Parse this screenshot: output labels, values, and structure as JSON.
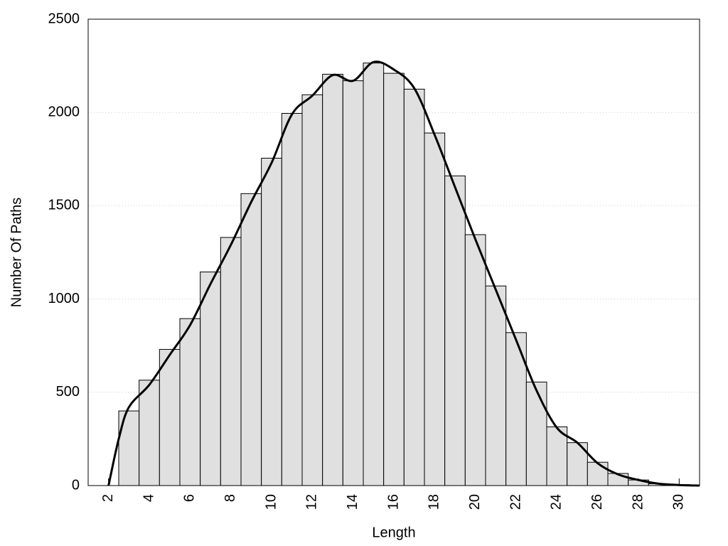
{
  "chart_data": {
    "type": "histogram",
    "x_label": "Length",
    "y_label": "Number Of Paths",
    "bins": [
      2.5,
      3.5,
      4.5,
      5.5,
      6.5,
      7.5,
      8.5,
      9.5,
      10.5,
      11.5,
      12.5,
      13.5,
      14.5,
      15.5,
      16.5,
      17.5,
      18.5,
      19.5,
      20.5,
      21.5,
      22.5,
      23.5,
      24.5,
      25.5,
      26.5,
      27.5,
      28.5,
      29.5,
      30.5
    ],
    "values": [
      400,
      565,
      730,
      895,
      1145,
      1330,
      1565,
      1755,
      1995,
      2095,
      2205,
      2170,
      2265,
      2210,
      2125,
      1890,
      1660,
      1345,
      1070,
      820,
      555,
      315,
      230,
      125,
      65,
      30,
      10,
      5
    ],
    "color": "#e0e0e0",
    "density": {
      "color": "#000000",
      "x": [
        2,
        2.5,
        3,
        4,
        5,
        6,
        7,
        8,
        9,
        10,
        11,
        12,
        13,
        14,
        15,
        16,
        17,
        18,
        19,
        20,
        21,
        22,
        23,
        24,
        25,
        26,
        27,
        28,
        29,
        30,
        31
      ],
      "values": [
        0,
        250,
        420,
        540,
        700,
        860,
        1080,
        1290,
        1520,
        1730,
        1990,
        2090,
        2200,
        2170,
        2270,
        2230,
        2130,
        1880,
        1600,
        1320,
        1050,
        780,
        510,
        310,
        230,
        120,
        60,
        30,
        10,
        3,
        0
      ]
    },
    "xlim": [
      1,
      31
    ],
    "xticks": [
      2,
      4,
      6,
      8,
      10,
      12,
      14,
      16,
      18,
      20,
      22,
      24,
      26,
      28,
      30
    ],
    "ylim": [
      0,
      2500
    ],
    "yticks": [
      0,
      500,
      1000,
      1500,
      2000,
      2500
    ],
    "grid": true
  }
}
